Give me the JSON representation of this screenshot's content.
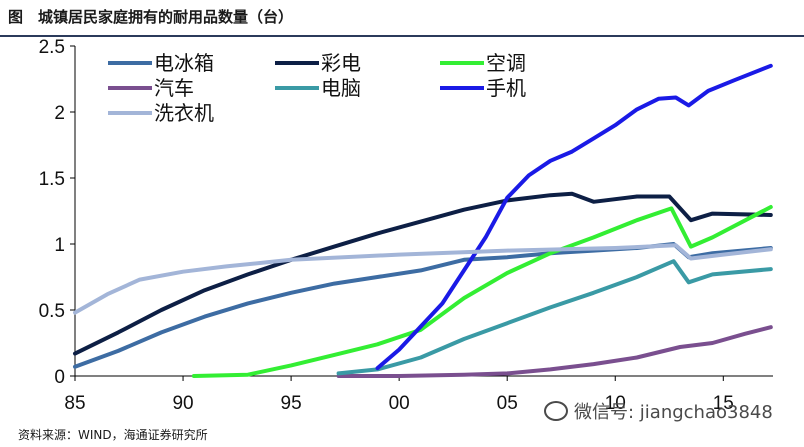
{
  "figure": {
    "title": "图　城镇居民家庭拥有的耐用品数量（台）",
    "source": "资料来源：WIND，海通证券研究所",
    "watermark": "微信号: jiangchao3848"
  },
  "chart_data": {
    "type": "line",
    "title": "城镇居民家庭拥有的耐用品数量（台）",
    "xlabel": "",
    "ylabel": "",
    "xlim": [
      1985,
      2017.3
    ],
    "ylim": [
      0,
      2.5
    ],
    "x_ticks": [
      1985,
      1990,
      1995,
      2000,
      2005,
      2010,
      2015
    ],
    "x_tick_labels": [
      "85",
      "90",
      "95",
      "00",
      "05",
      "10",
      "15"
    ],
    "y_ticks": [
      0,
      0.5,
      1,
      1.5,
      2,
      2.5
    ],
    "y_tick_labels": [
      "0",
      "0.5",
      "1",
      "1.5",
      "2",
      "2.5"
    ],
    "grid": false,
    "legend_position": "top-left",
    "series": [
      {
        "name": "电冰箱",
        "color": "#3d6ca3",
        "x": [
          1985,
          1987,
          1989,
          1991,
          1993,
          1995,
          1997,
          1999,
          2001,
          2003,
          2005,
          2007,
          2009,
          2011,
          2012.7,
          2013.4,
          2014.5,
          2017.2
        ],
        "y": [
          0.07,
          0.19,
          0.33,
          0.45,
          0.55,
          0.63,
          0.7,
          0.75,
          0.8,
          0.88,
          0.9,
          0.93,
          0.95,
          0.97,
          1.0,
          0.9,
          0.93,
          0.97
        ]
      },
      {
        "name": "彩电",
        "color": "#0d1f45",
        "x": [
          1985,
          1987,
          1989,
          1991,
          1993,
          1995,
          1997,
          1999,
          2001,
          2003,
          2005,
          2007,
          2008,
          2009,
          2011,
          2012.5,
          2013.5,
          2014.5,
          2017.2
        ],
        "y": [
          0.17,
          0.33,
          0.5,
          0.65,
          0.77,
          0.88,
          0.98,
          1.08,
          1.17,
          1.26,
          1.33,
          1.37,
          1.38,
          1.32,
          1.36,
          1.36,
          1.18,
          1.23,
          1.22
        ]
      },
      {
        "name": "空调",
        "color": "#33ee33",
        "x": [
          1990.5,
          1993,
          1995,
          1997,
          1999,
          2001,
          2003,
          2005,
          2007,
          2009,
          2011,
          2012.6,
          2013.5,
          2014.5,
          2017.2
        ],
        "y": [
          0.0,
          0.01,
          0.08,
          0.16,
          0.24,
          0.35,
          0.59,
          0.78,
          0.93,
          1.05,
          1.18,
          1.27,
          0.98,
          1.05,
          1.28
        ]
      },
      {
        "name": "汽车",
        "color": "#7a4f8f",
        "x": [
          1997.2,
          2000,
          2003,
          2005,
          2007,
          2009,
          2011,
          2013,
          2014.5,
          2016,
          2017.2
        ],
        "y": [
          0.0,
          0.0,
          0.01,
          0.02,
          0.05,
          0.09,
          0.14,
          0.22,
          0.25,
          0.32,
          0.37
        ]
      },
      {
        "name": "电脑",
        "color": "#3a9aa5",
        "x": [
          1997.2,
          1999,
          2001,
          2003,
          2005,
          2007,
          2009,
          2011,
          2012.7,
          2013.4,
          2014.5,
          2017.2
        ],
        "y": [
          0.02,
          0.05,
          0.14,
          0.28,
          0.4,
          0.52,
          0.63,
          0.75,
          0.87,
          0.71,
          0.77,
          0.81
        ]
      },
      {
        "name": "手机",
        "color": "#1a1ae6",
        "x": [
          1999,
          2000,
          2002,
          2003,
          2004,
          2005,
          2006,
          2007,
          2008,
          2009,
          2010,
          2011,
          2012,
          2012.8,
          2013.4,
          2014.3,
          2015.5,
          2017.2
        ],
        "y": [
          0.06,
          0.2,
          0.55,
          0.8,
          1.05,
          1.35,
          1.52,
          1.63,
          1.7,
          1.8,
          1.9,
          2.02,
          2.1,
          2.11,
          2.05,
          2.16,
          2.24,
          2.35
        ]
      },
      {
        "name": "洗衣机",
        "color": "#a3b5d8",
        "x": [
          1985,
          1986.5,
          1988,
          1990,
          1992,
          1995,
          2000,
          2005,
          2010,
          2012.8,
          2013.5,
          2015,
          2017.2
        ],
        "y": [
          0.48,
          0.62,
          0.73,
          0.79,
          0.83,
          0.88,
          0.92,
          0.95,
          0.97,
          0.99,
          0.89,
          0.92,
          0.96
        ]
      }
    ]
  }
}
